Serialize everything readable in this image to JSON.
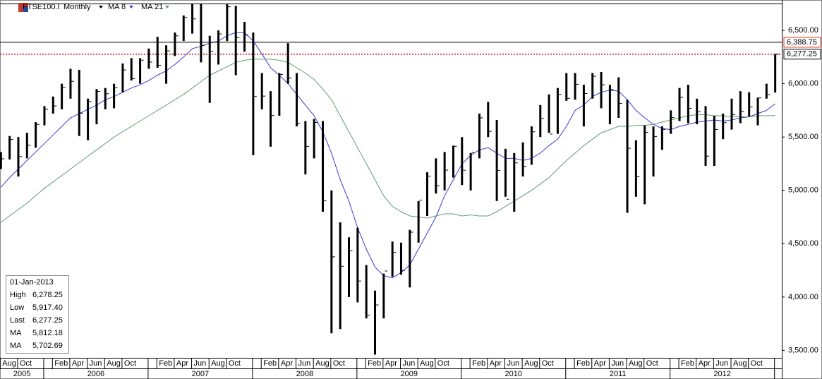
{
  "chart_data": {
    "type": "ohlc",
    "title": "FTSE100.I",
    "interval": "Monthly",
    "color": "#000000",
    "categories": [
      "Aug",
      null,
      "Oct",
      null,
      null,
      null,
      "Feb",
      null,
      "Apr",
      null,
      "Jun",
      null,
      "Aug",
      null,
      "Oct",
      null,
      null,
      null,
      "Feb",
      null,
      "Apr",
      null,
      "Jun",
      null,
      "Aug",
      null,
      "Oct",
      null,
      null,
      null,
      "Feb",
      null,
      "Apr",
      null,
      "Jun",
      null,
      "Aug",
      null,
      "Oct",
      null,
      null,
      null,
      "Feb",
      null,
      "Apr",
      null,
      "Jun",
      null,
      "Aug",
      null,
      "Oct",
      null,
      null,
      null,
      "Feb",
      null,
      "Apr",
      null,
      "Jun",
      null,
      "Aug",
      null,
      "Oct",
      null,
      null,
      null,
      "Feb",
      null,
      "Apr",
      null,
      "Jun",
      null,
      "Aug",
      null,
      "Oct",
      null,
      null,
      null,
      "Feb",
      null,
      "Apr",
      null,
      "Jun",
      null,
      "Aug",
      null,
      "Oct",
      null,
      null,
      null
    ],
    "years": [
      "2005",
      "2006",
      "2007",
      "2008",
      "2009",
      "2010",
      "2011",
      "2012"
    ],
    "high": [
      5360,
      5510,
      5500,
      5540,
      5640,
      5790,
      5880,
      6000,
      6140,
      6130,
      5860,
      5950,
      5960,
      6000,
      6190,
      6240,
      6240,
      6330,
      6440,
      6360,
      6480,
      6640,
      6750,
      6750,
      6450,
      6500,
      6750,
      6730,
      6580,
      6480,
      6100,
      5930,
      6100,
      6380,
      6100,
      5650,
      5670,
      5650,
      5000,
      4700,
      4560,
      4650,
      4300,
      4060,
      4220,
      4520,
      4510,
      4630,
      4900,
      5170,
      5300,
      5360,
      5420,
      5500,
      5350,
      5720,
      5830,
      5660,
      5390,
      5350,
      5450,
      5600,
      5800,
      5900,
      5960,
      6100,
      6100,
      5990,
      6100,
      6110,
      5990,
      6060,
      5850,
      5470,
      5610,
      5600,
      5600,
      5750,
      5960,
      5990,
      5860,
      5790,
      5700,
      5720,
      5860,
      5930,
      5920,
      5870,
      6000,
      6278.25
    ],
    "low": [
      5200,
      5290,
      5130,
      5300,
      5400,
      5610,
      5720,
      5760,
      5860,
      5510,
      5470,
      5620,
      5760,
      5770,
      5920,
      6030,
      6000,
      6140,
      6150,
      6000,
      6260,
      6400,
      6470,
      6200,
      5820,
      6180,
      6400,
      6080,
      6300,
      5330,
      5760,
      5410,
      5700,
      6000,
      5600,
      5150,
      5300,
      4800,
      3660,
      3700,
      4000,
      3950,
      3800,
      3460,
      3800,
      4190,
      4210,
      4090,
      4510,
      4760,
      4970,
      5000,
      5120,
      5050,
      5000,
      5300,
      5500,
      4900,
      4940,
      4800,
      5130,
      5240,
      5500,
      5540,
      5530,
      5840,
      5850,
      5600,
      5860,
      5770,
      5620,
      5680,
      4790,
      4940,
      4870,
      5130,
      5380,
      5530,
      5650,
      5630,
      5620,
      5230,
      5230,
      5480,
      5570,
      5630,
      5690,
      5610,
      5860,
      5917.4
    ],
    "close": [
      5296,
      5478,
      5317,
      5423,
      5619,
      5760,
      5792,
      5965,
      6023,
      5724,
      5833,
      5928,
      5906,
      5961,
      6129,
      6048,
      6221,
      6203,
      6172,
      6308,
      6449,
      6621,
      6608,
      6360,
      6303,
      6467,
      6721,
      6432,
      6457,
      5880,
      5884,
      5702,
      6087,
      6053,
      5626,
      5412,
      5637,
      4902,
      4377,
      4288,
      4434,
      4150,
      3830,
      3926,
      4244,
      4418,
      4249,
      4608,
      4909,
      5134,
      5044,
      5190,
      5413,
      5189,
      5355,
      5680,
      5553,
      5188,
      4917,
      5258,
      5225,
      5549,
      5675,
      5528,
      5900,
      5863,
      5994,
      5909,
      6070,
      5990,
      5946,
      5815,
      5395,
      5128,
      5544,
      5505,
      5572,
      5682,
      5872,
      5768,
      5738,
      5321,
      5571,
      5635,
      5711,
      5742,
      5782,
      5867,
      5898,
      6277.25
    ],
    "series": [
      {
        "name": "MA 8",
        "color": "#3a3ad6",
        "values": [
          5030,
          5120,
          5200,
          5280,
          5360,
          5440,
          5520,
          5600,
          5680,
          5720,
          5760,
          5800,
          5850,
          5880,
          5920,
          5960,
          5990,
          6030,
          6080,
          6120,
          6180,
          6250,
          6330,
          6350,
          6380,
          6400,
          6450,
          6480,
          6480,
          6400,
          6280,
          6150,
          6080,
          6000,
          5900,
          5800,
          5700,
          5550,
          5350,
          5100,
          4900,
          4650,
          4450,
          4280,
          4200,
          4180,
          4230,
          4300,
          4450,
          4600,
          4750,
          4950,
          5100,
          5250,
          5330,
          5380,
          5400,
          5350,
          5300,
          5300,
          5280,
          5300,
          5350,
          5420,
          5480,
          5600,
          5750,
          5800,
          5880,
          5920,
          5940,
          5930,
          5850,
          5750,
          5680,
          5620,
          5580,
          5570,
          5600,
          5620,
          5640,
          5650,
          5660,
          5650,
          5660,
          5680,
          5690,
          5720,
          5750,
          5812.18
        ]
      },
      {
        "name": "MA 21",
        "color": "#5e9e72",
        "values": [
          4700,
          4760,
          4820,
          4880,
          4950,
          5020,
          5080,
          5140,
          5200,
          5260,
          5320,
          5380,
          5440,
          5500,
          5550,
          5600,
          5650,
          5700,
          5750,
          5800,
          5850,
          5900,
          5960,
          6020,
          6080,
          6120,
          6160,
          6200,
          6220,
          6230,
          6230,
          6230,
          6220,
          6200,
          6150,
          6100,
          6040,
          5950,
          5850,
          5700,
          5550,
          5400,
          5250,
          5100,
          4950,
          4850,
          4800,
          4760,
          4750,
          4740,
          4760,
          4780,
          4780,
          4760,
          4770,
          4760,
          4760,
          4800,
          4850,
          4900,
          4950,
          5000,
          5060,
          5120,
          5200,
          5280,
          5350,
          5420,
          5480,
          5540,
          5570,
          5600,
          5600,
          5610,
          5610,
          5620,
          5640,
          5660,
          5680,
          5700,
          5710,
          5710,
          5700,
          5700,
          5690,
          5690,
          5690,
          5700,
          5700,
          5702.69
        ]
      }
    ],
    "ylim": [
      3430,
      6785
    ],
    "yticks": [
      {
        "value": 6500,
        "label": "6,500.00"
      },
      {
        "value": 6000,
        "label": "6,000.00"
      },
      {
        "value": 5500,
        "label": "5,500.00"
      },
      {
        "value": 5000,
        "label": "5,000.00"
      },
      {
        "value": 4500,
        "label": "4,500.00"
      },
      {
        "value": 4000,
        "label": "4,000.00"
      },
      {
        "value": 3500,
        "label": "3,500.00"
      }
    ],
    "price_lines": [
      {
        "value": 6388.75,
        "label": "6,388.75",
        "line_color": "#000000",
        "label_color": "#e0301e",
        "dotted": false
      },
      {
        "value": 6277.25,
        "label": "6,277.25",
        "line_color": "#d01010",
        "label_color": "#000000",
        "dotted": true
      }
    ],
    "info": {
      "date": "01-Jan-2013",
      "rows": [
        {
          "label": "High",
          "value": 6278.25,
          "value_label": "6,278.25",
          "color": "#000000"
        },
        {
          "label": "Low",
          "value": 5917.4,
          "value_label": "5,917.40",
          "color": "#000000"
        },
        {
          "label": "Last",
          "value": 6277.25,
          "value_label": "6,277.25",
          "color": "#000000"
        },
        {
          "label": "MA",
          "value": 5812.18,
          "value_label": "5,812.18",
          "color": "#3a3ad6"
        },
        {
          "label": "MA",
          "value": 5702.69,
          "value_label": "5,702.69",
          "color": "#5e9e72"
        }
      ]
    }
  }
}
